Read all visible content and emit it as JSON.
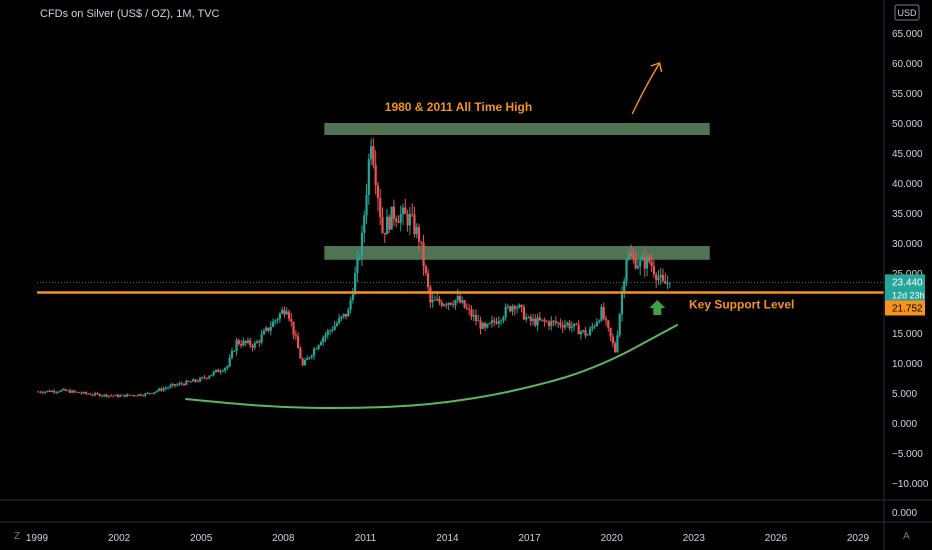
{
  "header": {
    "symbol_title": "CFDs on Silver (US$ / OZ), 1M, TVC"
  },
  "currency_badge": "USD",
  "bottom_bar": {
    "left_icon": "Z",
    "right_icon": "A"
  },
  "colors": {
    "background": "#000000",
    "candle_up": "#26a69a",
    "candle_down": "#ef5350",
    "zone_fill": "#6b9a6f",
    "support_line": "#f7931a",
    "annotation_text": "#f7931a",
    "curve": "#5cb85c",
    "arrow_up": "#43a047",
    "axis_text": "#d1d4dc"
  },
  "annotations": {
    "ath_label": "1980 & 2011 All Time High",
    "support_label": "Key Support Level"
  },
  "price_badges": {
    "last_price": "23.440",
    "countdown": "12d 23h",
    "support_price": "21.752"
  },
  "chart_data": {
    "type": "candlestick",
    "title": "CFDs on Silver (US$ / OZ), 1M, TVC",
    "x_axis": {
      "type": "date",
      "range": [
        "1999-01",
        "2030-06"
      ],
      "tick_labels": [
        "1999",
        "2002",
        "2005",
        "2008",
        "2011",
        "2014",
        "2017",
        "2020",
        "2023",
        "2026",
        "2029"
      ]
    },
    "y_axis": {
      "range": [
        -14,
        67
      ],
      "unit": "USD",
      "tick_labels": [
        "65.000",
        "60.000",
        "55.000",
        "50.000",
        "45.000",
        "40.000",
        "35.000",
        "30.000",
        "25.000",
        "20.000",
        "15.000",
        "10.000",
        "5.000",
        "0.000",
        "−5.000",
        "−10.000"
      ],
      "pane_bottom_label": "0.000"
    },
    "grid": false,
    "price_path": [
      [
        "1999-01",
        5.2
      ],
      [
        "2000-01",
        5.4
      ],
      [
        "2001-01",
        4.8
      ],
      [
        "2002-01",
        4.5
      ],
      [
        "2003-01",
        4.8
      ],
      [
        "2004-01",
        6.2
      ],
      [
        "2005-01",
        7.2
      ],
      [
        "2006-01",
        9.5
      ],
      [
        "2006-05",
        13.5
      ],
      [
        "2007-01",
        13.0
      ],
      [
        "2008-03",
        19.5
      ],
      [
        "2008-10",
        9.5
      ],
      [
        "2009-06",
        14.0
      ],
      [
        "2010-06",
        18.5
      ],
      [
        "2010-12",
        30.5
      ],
      [
        "2011-04",
        48.0
      ],
      [
        "2011-09",
        32.0
      ],
      [
        "2012-02",
        35.0
      ],
      [
        "2012-09",
        34.0
      ],
      [
        "2013-01",
        31.0
      ],
      [
        "2013-06",
        20.0
      ],
      [
        "2014-06",
        20.5
      ],
      [
        "2015-06",
        15.5
      ],
      [
        "2016-07",
        20.0
      ],
      [
        "2017-01",
        17.0
      ],
      [
        "2018-06",
        16.5
      ],
      [
        "2019-03",
        14.7
      ],
      [
        "2019-09",
        18.5
      ],
      [
        "2020-03",
        12.0
      ],
      [
        "2020-08",
        28.0
      ],
      [
        "2021-02",
        26.5
      ],
      [
        "2021-06",
        27.0
      ],
      [
        "2021-12",
        23.0
      ],
      [
        "2022-02",
        23.4
      ]
    ],
    "zones": [
      {
        "label": "1980 & 2011 All Time High",
        "from": 48.0,
        "to": 50.0,
        "x_start": "2009-07",
        "x_end": "2023-08"
      },
      {
        "label": "",
        "from": 27.2,
        "to": 29.5,
        "x_start": "2009-07",
        "x_end": "2023-08"
      }
    ],
    "horizontal_lines": [
      {
        "label": "Key Support Level",
        "value": 21.752
      }
    ],
    "last_price": 23.44,
    "curve_points": [
      [
        "2004-06",
        4.0
      ],
      [
        "2007-06",
        2.7
      ],
      [
        "2010-06",
        2.4
      ],
      [
        "2013-06",
        3.0
      ],
      [
        "2016-06",
        5.2
      ],
      [
        "2019-06",
        9.0
      ],
      [
        "2022-06",
        16.4
      ]
    ],
    "arrows": [
      {
        "kind": "target",
        "from": [
          "2020-10",
          51.5
        ],
        "to": [
          "2021-10",
          60.0
        ]
      },
      {
        "kind": "up",
        "at": [
          "2021-09",
          20.5
        ]
      }
    ]
  }
}
